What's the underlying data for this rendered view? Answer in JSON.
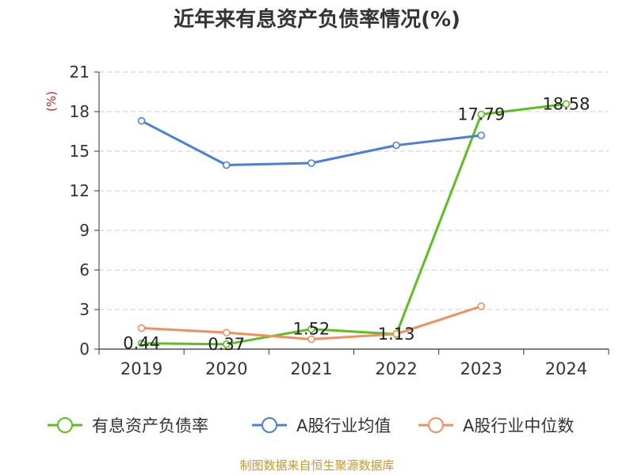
{
  "chart_data": {
    "type": "line",
    "title": "近年来有息资产负债率情况(%)",
    "ylabel": "(%)",
    "xlabel": "",
    "categories": [
      "2019",
      "2020",
      "2021",
      "2022",
      "2023",
      "2024"
    ],
    "ylim": [
      0,
      21
    ],
    "yticks": [
      0,
      3,
      6,
      9,
      12,
      15,
      18,
      21
    ],
    "grid": true,
    "legend_position": "bottom",
    "series": [
      {
        "name": "有息资产负债率",
        "color": "#5cbf1f",
        "show_labels": true,
        "values": [
          0.44,
          0.37,
          1.52,
          1.13,
          17.79,
          18.58
        ]
      },
      {
        "name": "A股行业均值",
        "color": "#4a7fd8",
        "show_labels": false,
        "values": [
          17.3,
          13.95,
          14.1,
          15.45,
          16.2,
          null
        ]
      },
      {
        "name": "A股行业中位数",
        "color": "#f09060",
        "show_labels": false,
        "values": [
          1.6,
          1.25,
          0.75,
          1.15,
          3.25,
          null
        ]
      }
    ]
  },
  "source": "制图数据来自恒生聚源数据库"
}
